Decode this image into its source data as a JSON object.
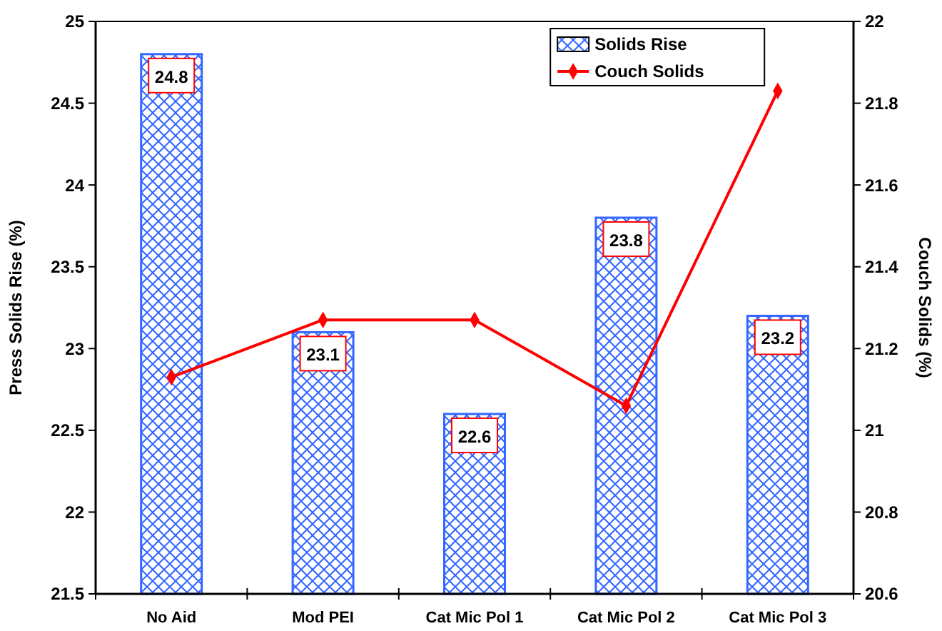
{
  "chart_data": {
    "type": "bar",
    "ylabel": "Press Solids Rise (%)",
    "y2label": "Couch Solids (%)",
    "categories": [
      "No Aid",
      "Mod PEI",
      "Cat Mic Pol 1",
      "Cat Mic Pol 2",
      "Cat Mic Pol 3"
    ],
    "series": [
      {
        "name": "Solids Rise",
        "color": "#3366ff",
        "values": [
          24.8,
          23.1,
          22.6,
          23.8,
          23.2
        ],
        "value_labels": [
          "24.8",
          "23.1",
          "22.6",
          "23.8",
          "23.2"
        ]
      },
      {
        "name": "Couch Solids",
        "type": "line",
        "axis": "y2",
        "color": "#ff0000",
        "marker": "diamond",
        "values": [
          21.13,
          21.27,
          21.27,
          21.06,
          21.83
        ]
      }
    ],
    "ylim": [
      21.5,
      25
    ],
    "yticks": [
      21.5,
      22,
      22.5,
      23,
      23.5,
      24,
      24.5,
      25
    ],
    "y2lim": [
      20.6,
      22
    ],
    "y2ticks": [
      20.6,
      20.8,
      21,
      21.2,
      21.4,
      21.6,
      21.8,
      22
    ],
    "legend": "top right",
    "grid": false
  }
}
